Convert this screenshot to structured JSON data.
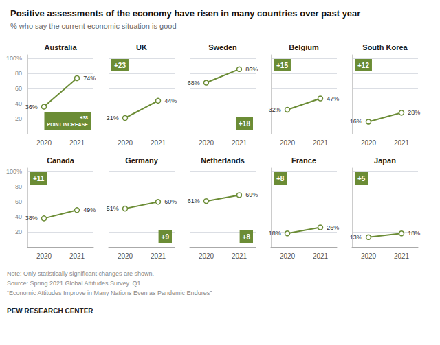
{
  "title": "Positive assessments of the economy have risen in many countries over past year",
  "subtitle": "% who say the current economic situation is good",
  "note": "Note: Only statistically significant changes are shown.\nSource: Spring 2021 Global Attitudes Survey. Q1.\n“Economic Attitudes Improve in Many Nations Even as Pandemic Endures”",
  "source": "PEW RESEARCH CENTER",
  "chart_data": [
    {
      "type": "line",
      "title": "Australia",
      "categories": [
        "2020",
        "2021"
      ],
      "values": [
        36,
        74
      ],
      "value_labels": [
        "36%",
        "74%"
      ],
      "data_labels": true,
      "color": "#6b8c35",
      "annotation": "+38\nPOINT INCREASE",
      "ylim": [
        0,
        105
      ],
      "yticks": [
        {
          "value": 0,
          "label": ""
        },
        20,
        40,
        60,
        80,
        {
          "value": 100,
          "label": "100%"
        }
      ],
      "grid": true
    },
    {
      "type": "line",
      "title": "UK",
      "categories": [
        "2020",
        "2021"
      ],
      "values": [
        21,
        44
      ],
      "value_labels": [
        "21%",
        "44%"
      ],
      "data_labels": true,
      "color": "#6b8c35",
      "annotation": "+23",
      "ylim": [
        0,
        105
      ],
      "yticks": [
        0,
        20,
        40,
        60,
        80,
        100
      ],
      "grid": true,
      "tick_labels": "x"
    },
    {
      "type": "line",
      "title": "Sweden",
      "categories": [
        "2020",
        "2021"
      ],
      "values": [
        68,
        86
      ],
      "value_labels": [
        "68%",
        "86%"
      ],
      "data_labels": true,
      "color": "#6b8c35",
      "annotation": "+18",
      "ylim": [
        0,
        105
      ],
      "yticks": [
        0,
        20,
        40,
        60,
        80,
        100
      ],
      "grid": true,
      "tick_labels": "x"
    },
    {
      "type": "line",
      "title": "Belgium",
      "categories": [
        "2020",
        "2021"
      ],
      "values": [
        32,
        47
      ],
      "value_labels": [
        "32%",
        "47%"
      ],
      "data_labels": true,
      "color": "#6b8c35",
      "annotation": "+15",
      "ylim": [
        0,
        105
      ],
      "yticks": [
        0,
        20,
        40,
        60,
        80,
        100
      ],
      "grid": true,
      "tick_labels": "x"
    },
    {
      "type": "line",
      "title": "South Korea",
      "categories": [
        "2020",
        "2021"
      ],
      "values": [
        16,
        28
      ],
      "value_labels": [
        "16%",
        "28%"
      ],
      "data_labels": true,
      "color": "#6b8c35",
      "annotation": "+12",
      "ylim": [
        0,
        105
      ],
      "yticks": [
        0,
        20,
        40,
        60,
        80,
        100
      ],
      "grid": true,
      "tick_labels": "x"
    },
    {
      "type": "line",
      "title": "Canada",
      "categories": [
        "2020",
        "2021"
      ],
      "values": [
        38,
        49
      ],
      "value_labels": [
        "38%",
        "49%"
      ],
      "data_labels": true,
      "color": "#6b8c35",
      "annotation": "+11",
      "ylim": [
        0,
        105
      ],
      "yticks": [
        {
          "value": 0,
          "label": ""
        },
        20,
        40,
        60,
        80,
        {
          "value": 100,
          "label": "100%"
        }
      ],
      "grid": true
    },
    {
      "type": "line",
      "title": "Germany",
      "categories": [
        "2020",
        "2021"
      ],
      "values": [
        51,
        60
      ],
      "value_labels": [
        "51%",
        "60%"
      ],
      "data_labels": true,
      "color": "#6b8c35",
      "annotation": "+9",
      "ylim": [
        0,
        105
      ],
      "yticks": [
        0,
        20,
        40,
        60,
        80,
        100
      ],
      "grid": true,
      "tick_labels": "x"
    },
    {
      "type": "line",
      "title": "Netherlands",
      "categories": [
        "2020",
        "2021"
      ],
      "values": [
        61,
        69
      ],
      "value_labels": [
        "61%",
        "69%"
      ],
      "data_labels": true,
      "color": "#6b8c35",
      "annotation": "+8",
      "ylim": [
        0,
        105
      ],
      "yticks": [
        0,
        20,
        40,
        60,
        80,
        100
      ],
      "grid": true,
      "tick_labels": "x"
    },
    {
      "type": "line",
      "title": "France",
      "categories": [
        "2020",
        "2021"
      ],
      "values": [
        18,
        26
      ],
      "value_labels": [
        "18%",
        "26%"
      ],
      "data_labels": true,
      "color": "#6b8c35",
      "annotation": "+8",
      "ylim": [
        0,
        105
      ],
      "yticks": [
        0,
        20,
        40,
        60,
        80,
        100
      ],
      "grid": true,
      "tick_labels": "x"
    },
    {
      "type": "line",
      "title": "Japan",
      "categories": [
        "2020",
        "2021"
      ],
      "values": [
        13,
        18
      ],
      "value_labels": [
        "13%",
        "18%"
      ],
      "data_labels": true,
      "color": "#6b8c35",
      "annotation": "+5",
      "ylim": [
        0,
        105
      ],
      "yticks": [
        0,
        20,
        40,
        60,
        80,
        100
      ],
      "grid": true,
      "tick_labels": "x"
    }
  ]
}
